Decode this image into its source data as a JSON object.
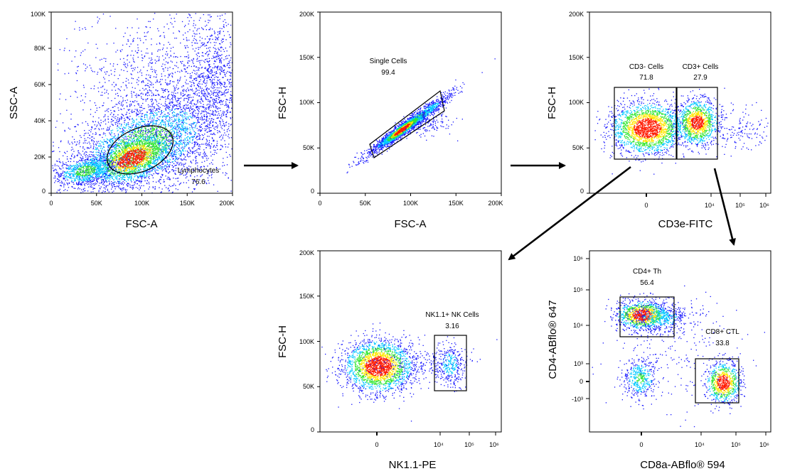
{
  "chart_data": [
    {
      "type": "scatter",
      "xlabel": "FSC-A",
      "ylabel": "SSC-A",
      "x_ticks": [
        "0",
        "50K",
        "100K",
        "150K",
        "200K"
      ],
      "x_tick_values": [
        0,
        50000,
        100000,
        150000,
        200000
      ],
      "y_ticks": [
        "0",
        "20K",
        "40K",
        "60K",
        "80K",
        "100K"
      ],
      "y_tick_values": [
        0,
        20000,
        40000,
        60000,
        80000,
        100000
      ],
      "xlim": [
        0,
        200000
      ],
      "ylim": [
        0,
        100000
      ],
      "gates": [
        {
          "name": "Lymphocytes",
          "percent": "76.6",
          "shape": "ellipse"
        }
      ]
    },
    {
      "type": "scatter",
      "xlabel": "FSC-A",
      "ylabel": "FSC-H",
      "x_ticks": [
        "0",
        "50K",
        "100K",
        "150K",
        "200K"
      ],
      "x_tick_values": [
        0,
        50000,
        100000,
        150000,
        200000
      ],
      "y_ticks": [
        "0",
        "50K",
        "100K",
        "150K",
        "200K"
      ],
      "y_tick_values": [
        0,
        50000,
        100000,
        150000,
        200000
      ],
      "xlim": [
        0,
        200000
      ],
      "ylim": [
        0,
        200000
      ],
      "gates": [
        {
          "name": "Single Cells",
          "percent": "99.4",
          "shape": "polygon"
        }
      ]
    },
    {
      "type": "scatter",
      "xlabel": "CD3e-FITC",
      "ylabel": "FSC-H",
      "x_scale": "biexponential",
      "x_ticks": [
        "0",
        "10⁴",
        "10⁵",
        "10⁶"
      ],
      "y_ticks": [
        "0",
        "50K",
        "100K",
        "150K",
        "200K"
      ],
      "y_tick_values": [
        0,
        50000,
        100000,
        150000,
        200000
      ],
      "ylim": [
        0,
        200000
      ],
      "gates": [
        {
          "name": "CD3- Cells",
          "percent": "71.8",
          "shape": "rectangle"
        },
        {
          "name": "CD3+ Cells",
          "percent": "27.9",
          "shape": "rectangle"
        }
      ]
    },
    {
      "type": "scatter",
      "xlabel": "NK1.1-PE",
      "ylabel": "FSC-H",
      "x_scale": "biexponential",
      "x_ticks": [
        "0",
        "10⁴",
        "10⁵",
        "10⁶"
      ],
      "y_ticks": [
        "0",
        "50K",
        "100K",
        "150K",
        "200K"
      ],
      "y_tick_values": [
        0,
        50000,
        100000,
        150000,
        200000
      ],
      "ylim": [
        0,
        200000
      ],
      "gates": [
        {
          "name": "NK1.1+ NK Cells",
          "percent": "3.16",
          "shape": "rectangle"
        }
      ]
    },
    {
      "type": "scatter",
      "xlabel": "CD8a-ABflo® 594",
      "ylabel": "CD4-ABflo® 647",
      "x_scale": "biexponential",
      "y_scale": "biexponential",
      "x_ticks": [
        "0",
        "10⁴",
        "10⁵",
        "10⁶"
      ],
      "y_ticks": [
        "-10³",
        "0",
        "10³",
        "10⁴",
        "10⁵",
        "10⁶"
      ],
      "gates": [
        {
          "name": "CD4+ Th",
          "percent": "56.4",
          "shape": "rectangle"
        },
        {
          "name": "CD8+ CTL",
          "percent": "33.8",
          "shape": "rectangle"
        }
      ]
    }
  ],
  "colors": {
    "density_low": "#1414ff",
    "density_mid1": "#00c8ff",
    "density_mid2": "#33e633",
    "density_mid3": "#ffe600",
    "density_high": "#ff1a00",
    "gate": "#000000",
    "arrow": "#000000"
  }
}
